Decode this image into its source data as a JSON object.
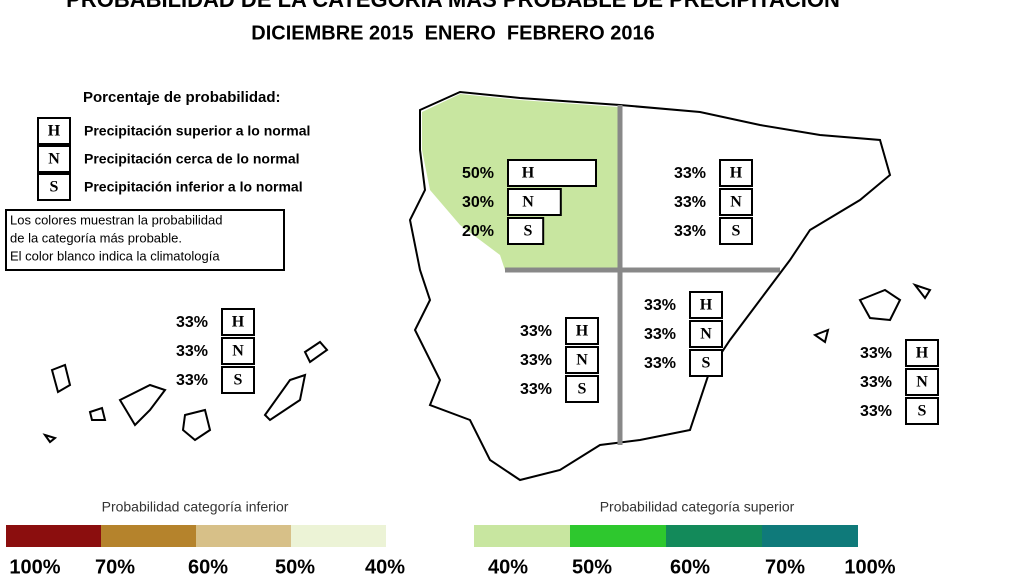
{
  "header": {
    "title": "PROBABILIDAD DE LA CATEGORÍA MÁS PROBABLE DE PRECIPITACIÓN",
    "subtitle": "DICIEMBRE 2015  ENERO  FEBRERO 2016"
  },
  "legend": {
    "title": "Porcentaje de probabilidad:",
    "items": [
      {
        "letter": "H",
        "label": "Precipitación superior a lo normal"
      },
      {
        "letter": "N",
        "label": "Precipitación cerca de lo normal"
      },
      {
        "letter": "S",
        "label": "Precipitación inferior a lo normal"
      }
    ],
    "note": [
      "Los colores muestran la probabilidad",
      "de la categoría más probable.",
      "El color blanco indica la climatología"
    ]
  },
  "categories": [
    "H",
    "N",
    "S"
  ],
  "regions": [
    {
      "style": "bars",
      "values": [
        50,
        30,
        20
      ],
      "value_labels": [
        "50%",
        "30%",
        "20%"
      ]
    },
    {
      "style": "boxes",
      "values": [
        33,
        33,
        33
      ],
      "value_labels": [
        "33%",
        "33%",
        "33%"
      ]
    },
    {
      "style": "boxes",
      "values": [
        33,
        33,
        33
      ],
      "value_labels": [
        "33%",
        "33%",
        "33%"
      ]
    },
    {
      "style": "boxes",
      "values": [
        33,
        33,
        33
      ],
      "value_labels": [
        "33%",
        "33%",
        "33%"
      ]
    },
    {
      "style": "boxes",
      "values": [
        33,
        33,
        33
      ],
      "value_labels": [
        "33%",
        "33%",
        "33%"
      ]
    },
    {
      "style": "boxes",
      "values": [
        33,
        33,
        33
      ],
      "value_labels": [
        "33%",
        "33%",
        "33%"
      ]
    }
  ],
  "scales": [
    {
      "title": "Probabilidad categoría inferior",
      "colors": [
        "#8b0e0e",
        "#b5832c",
        "#d7c088",
        "#ecf3d6"
      ],
      "labels": [
        "100%",
        "70%",
        "60%",
        "50%",
        "40%"
      ]
    },
    {
      "title": "Probabilidad categoría superior",
      "colors": [
        "#c8e6a0",
        "#2ec82e",
        "#138a5a",
        "#0f7a7a"
      ],
      "labels": [
        "40%",
        "50%",
        "60%",
        "70%",
        "100%"
      ]
    }
  ]
}
